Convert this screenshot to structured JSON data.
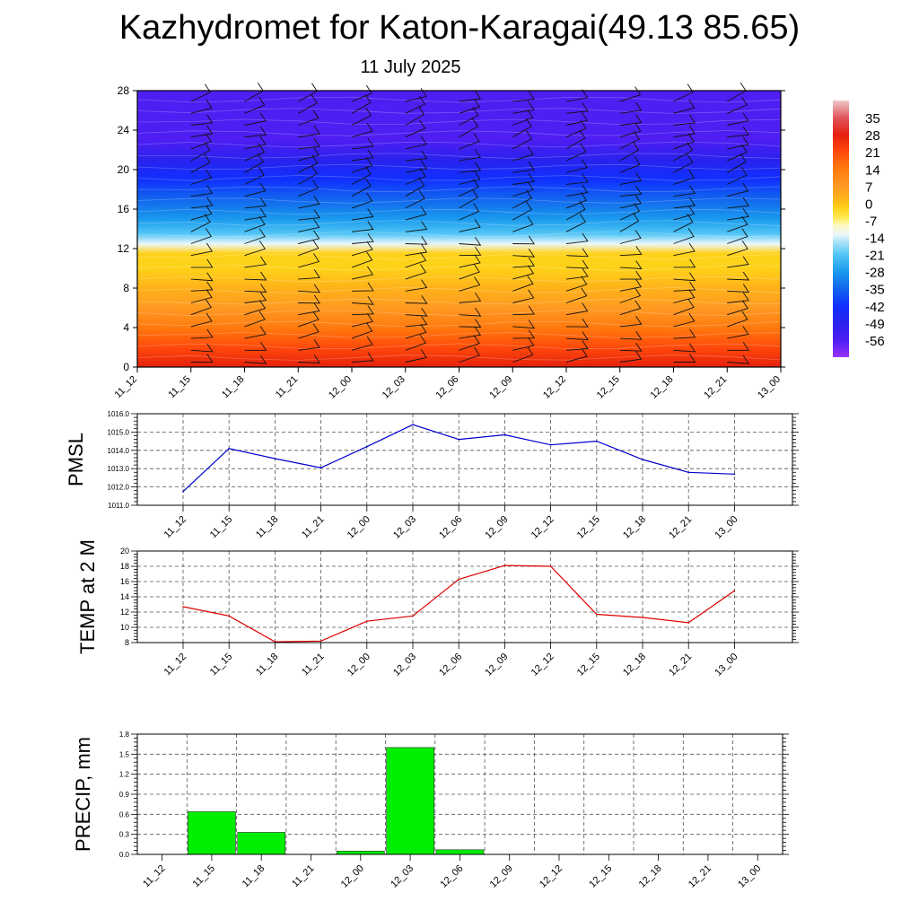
{
  "title": "Kazhydromet for Katon-Karagai(49.13 85.65)",
  "subtitle": "11 July 2025",
  "time_labels": [
    "11_12",
    "11_15",
    "11_18",
    "11_21",
    "12_00",
    "12_03",
    "12_06",
    "12_09",
    "12_12",
    "12_15",
    "12_18",
    "12_21",
    "13_00"
  ],
  "colors": {
    "pmsl_line": "#0000cc",
    "temp_line": "#dd0000",
    "precip_bar": "#00ee00",
    "grid": "#555555"
  },
  "chart_data": [
    {
      "type": "heatmap",
      "title": "",
      "ylim": [
        0,
        28
      ],
      "y_ticks": [
        0,
        4,
        8,
        12,
        16,
        20,
        24,
        28
      ],
      "colorbar": {
        "labels": [
          "35",
          "28",
          "21",
          "14",
          "7",
          "0",
          "-7",
          "-14",
          "-21",
          "-28",
          "-35",
          "-42",
          "-49",
          "-56"
        ],
        "range": [
          -63,
          42
        ]
      },
      "temperature_profile": {
        "levels": [
          0,
          2,
          4,
          6,
          8,
          10,
          11.5,
          12.5,
          13.5,
          15,
          17,
          19,
          21,
          23,
          25,
          28
        ],
        "values": [
          22,
          15,
          9,
          4,
          1,
          -2,
          -5,
          -14,
          -24,
          -34,
          -40,
          -45,
          -52,
          -58,
          -60,
          -57
        ]
      }
    },
    {
      "type": "line",
      "ylabel": "PMSL",
      "ylim": [
        1011.0,
        1016.0
      ],
      "y_ticks": [
        "1011.0",
        "1012.0",
        "1013.0",
        "1014.0",
        "1015.0",
        "1016.0"
      ],
      "values": [
        1011.75,
        1014.1,
        1013.55,
        1013.05,
        1014.2,
        1015.4,
        1014.6,
        1014.85,
        1014.3,
        1014.5,
        1013.5,
        1012.8,
        1012.7
      ]
    },
    {
      "type": "line",
      "ylabel": "TEMP at 2 M",
      "ylim": [
        8,
        20
      ],
      "y_ticks": [
        "8",
        "10",
        "12",
        "14",
        "16",
        "18",
        "20"
      ],
      "values": [
        12.7,
        11.5,
        8.1,
        8.2,
        10.8,
        11.5,
        16.3,
        18.1,
        18.0,
        11.7,
        11.3,
        10.6,
        14.8
      ]
    },
    {
      "type": "bar",
      "ylabel": "PRECIP, mm",
      "ylim": [
        0,
        1.8
      ],
      "y_ticks": [
        "0.0",
        "0.3",
        "0.6",
        "0.9",
        "1.2",
        "1.5",
        "1.8"
      ],
      "values": [
        0,
        0.64,
        0.33,
        0,
        0.05,
        1.6,
        0.07,
        0,
        0,
        0,
        0,
        0,
        0
      ]
    }
  ]
}
